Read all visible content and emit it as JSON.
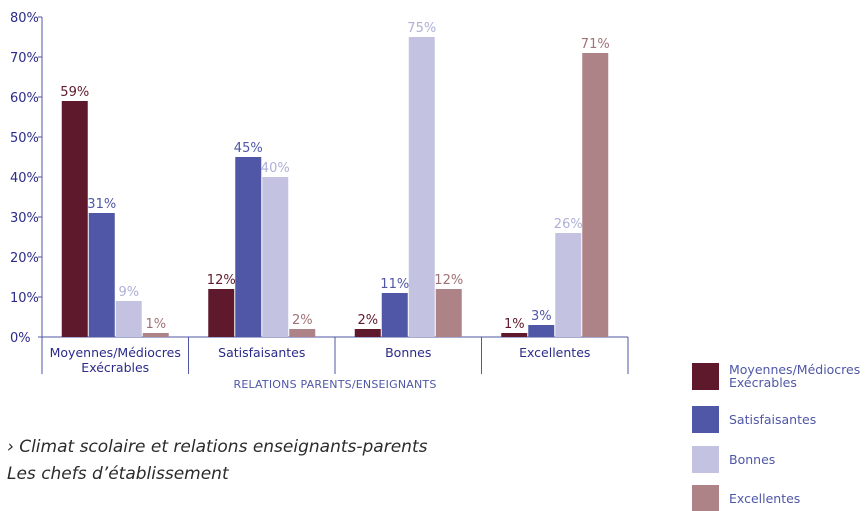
{
  "chart_data": {
    "type": "bar",
    "categories": [
      "Moyennes/Médiocres Exécrables",
      "Satisfaisantes",
      "Bonnes",
      "Excellentes"
    ],
    "category_labels": [
      [
        "Moyennes/Médiocres",
        "Exécrables"
      ],
      [
        "Satisfaisantes"
      ],
      [
        "Bonnes"
      ],
      [
        "Excellentes"
      ]
    ],
    "series": [
      {
        "name": "Moyennes/Médiocres Exécrables",
        "legend_lines": [
          "Moyennes/Médiocres",
          "Exécrables"
        ],
        "color": "#5e1a2c",
        "label_color": "#5e1a2c",
        "values": [
          59,
          12,
          2,
          1
        ]
      },
      {
        "name": "Satisfaisantes",
        "legend_lines": [
          "Satisfaisantes"
        ],
        "color": "#4f57a6",
        "label_color": "#4f57a6",
        "values": [
          31,
          45,
          11,
          3
        ]
      },
      {
        "name": "Bonnes",
        "legend_lines": [
          "Bonnes"
        ],
        "color": "#c3c3e1",
        "label_color": "#aeb0d6",
        "values": [
          9,
          40,
          75,
          26
        ]
      },
      {
        "name": "Excellentes",
        "legend_lines": [
          "Excellentes"
        ],
        "color": "#ad8387",
        "label_color": "#a07276",
        "values": [
          1,
          2,
          12,
          71
        ]
      }
    ],
    "data_labels": [
      [
        "59%",
        "12%",
        "2%",
        "1%"
      ],
      [
        "31%",
        "45%",
        "11%",
        "3%"
      ],
      [
        "9%",
        "40%",
        "75%",
        "26%"
      ],
      [
        "1%",
        "2%",
        "12%",
        "71%"
      ]
    ],
    "y_ticks": [
      "0%",
      "10%",
      "20%",
      "30%",
      "40%",
      "50%",
      "60%",
      "70%",
      "80%"
    ],
    "ylim": [
      0,
      80
    ],
    "xlabel": "RELATIONS PARENTS/ENSEIGNANTS",
    "ylabel": "",
    "title": "",
    "legend_position": "bottom-right",
    "grid": false,
    "axis_color": "#4f57a6"
  },
  "caption": {
    "line1": "› Climat scolaire et relations enseignants-parents",
    "line2": "Les chefs d’établissement"
  }
}
